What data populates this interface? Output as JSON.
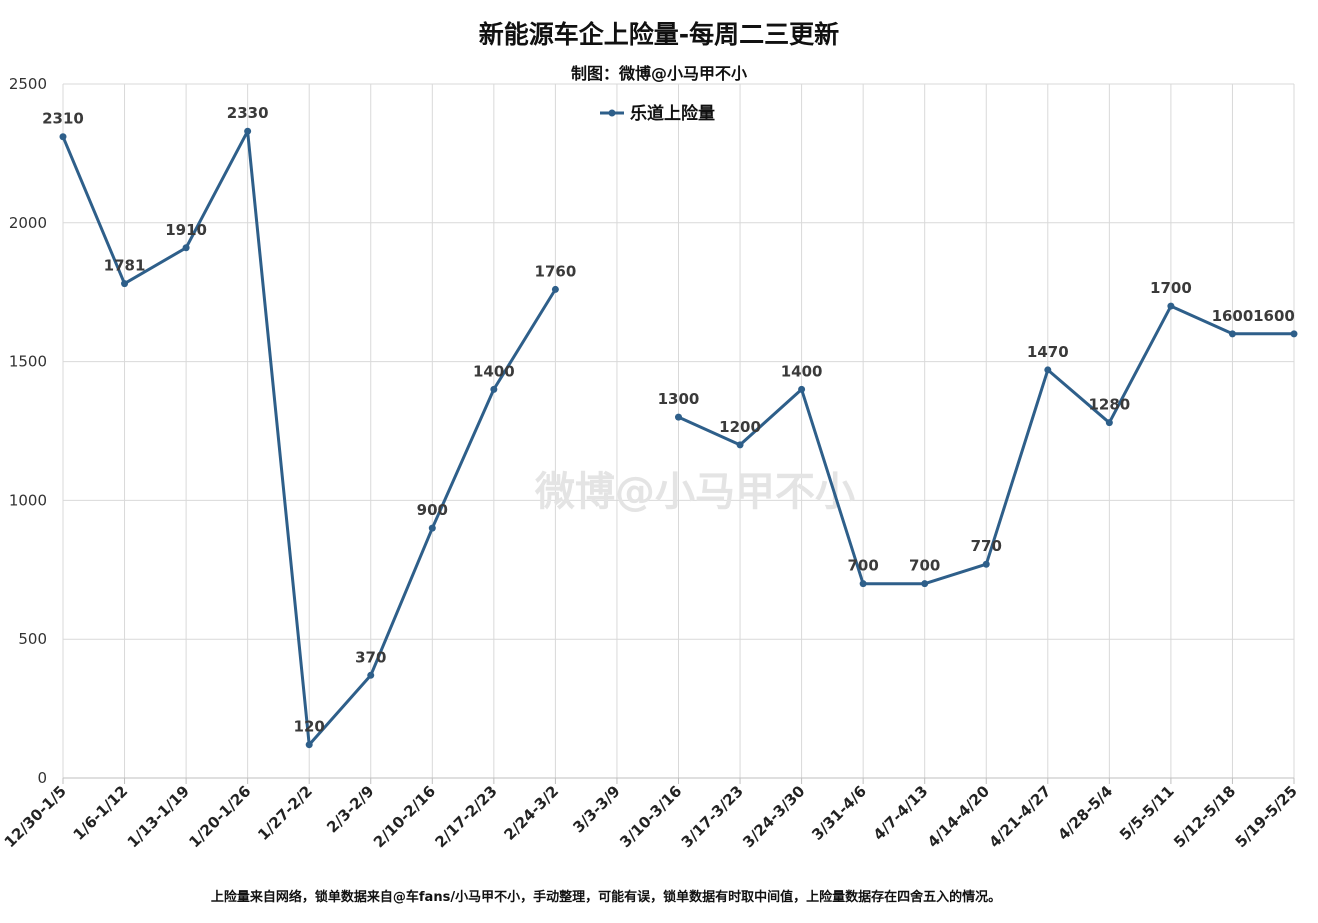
{
  "chart_data": {
    "type": "line",
    "title": "新能源车企上险量-每周二三更新",
    "subtitle": "制图：微博@小马甲不小",
    "footnote": "上险量来自网络，锁单数据来自@车fans/小马甲不小，手动整理，可能有误，锁单数据有时取中间值，上险量数据存在四舍五入的情况。",
    "watermark": "微博@小马甲不小",
    "legend_position": "top-center",
    "grid": true,
    "ylim": [
      0,
      2500
    ],
    "yticks": [
      0,
      500,
      1000,
      1500,
      2000,
      2500
    ],
    "categories": [
      "12/30-1/5",
      "1/6-1/12",
      "1/13-1/19",
      "1/20-1/26",
      "1/27-2/2",
      "2/3-2/9",
      "2/10-2/16",
      "2/17-2/23",
      "2/24-3/2",
      "3/3-3/9",
      "3/10-3/16",
      "3/17-3/23",
      "3/24-3/30",
      "3/31-4/6",
      "4/7-4/13",
      "4/14-4/20",
      "4/21-4/27",
      "4/28-5/4",
      "5/5-5/11",
      "5/12-5/18",
      "5/19-5/25"
    ],
    "series": [
      {
        "name": "乐道上险量",
        "color": "#2e5f8a",
        "values": [
          2310,
          1781,
          1910,
          2330,
          120,
          370,
          900,
          1400,
          1760,
          null,
          1300,
          1200,
          1400,
          700,
          700,
          770,
          1470,
          1280,
          1700,
          1600,
          1600
        ]
      }
    ]
  }
}
